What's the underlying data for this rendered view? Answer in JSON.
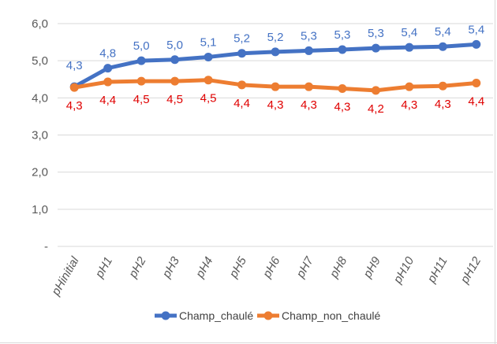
{
  "chart_data": {
    "type": "line",
    "title": "",
    "xlabel": "",
    "ylabel": "",
    "categories": [
      "pHinitial",
      "pH1",
      "pH2",
      "pH3",
      "pH4",
      "pH5",
      "pH6",
      "pH7",
      "pH8",
      "pH9",
      "pH10",
      "pH11",
      "pH12"
    ],
    "y_ticks": [
      {
        "value": 0,
        "label": "-"
      },
      {
        "value": 1,
        "label": "1,0"
      },
      {
        "value": 2,
        "label": "2,0"
      },
      {
        "value": 3,
        "label": "3,0"
      },
      {
        "value": 4,
        "label": "4,0"
      },
      {
        "value": 5,
        "label": "5,0"
      },
      {
        "value": 6,
        "label": "6,0"
      }
    ],
    "ylim": [
      0,
      6
    ],
    "grid": true,
    "legend_position": "bottom",
    "series": [
      {
        "name": "Champ_chaulé",
        "color": "#4472c4",
        "values": [
          4.3,
          4.8,
          5.0,
          5.03,
          5.1,
          5.2,
          5.24,
          5.27,
          5.3,
          5.34,
          5.36,
          5.38,
          5.44
        ],
        "labels": [
          "4,3",
          "4,8",
          "5,0",
          "5,0",
          "5,1",
          "5,2",
          "5,2",
          "5,3",
          "5,3",
          "5,3",
          "5,4",
          "5,4",
          "5,4"
        ]
      },
      {
        "name": "Champ_non_chaulé",
        "color": "#ed7d31",
        "values": [
          4.28,
          4.43,
          4.45,
          4.45,
          4.48,
          4.35,
          4.3,
          4.3,
          4.25,
          4.2,
          4.3,
          4.32,
          4.4
        ],
        "labels": [
          "4,3",
          "4,4",
          "4,5",
          "4,5",
          "4,5",
          "4,4",
          "4,3",
          "4,3",
          "4,3",
          "4,2",
          "4,3",
          "4,3",
          "4,4"
        ]
      }
    ]
  }
}
